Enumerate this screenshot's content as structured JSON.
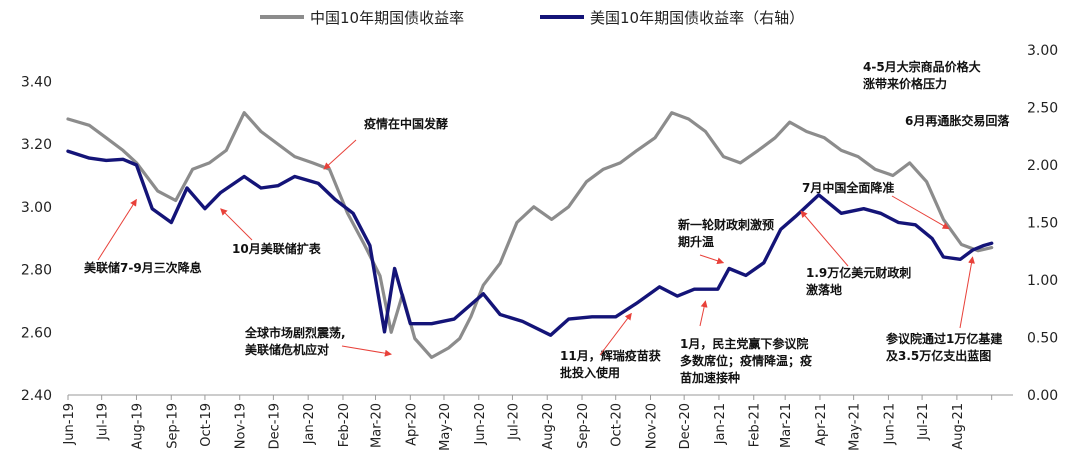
{
  "chart_data": {
    "type": "line",
    "title": "",
    "series": [
      {
        "name": "中国10年期国债收益率",
        "axis": "left",
        "color": "#8c8c8c",
        "points": [
          [
            "2019-06-01",
            3.28
          ],
          [
            "2019-06-20",
            3.26
          ],
          [
            "2019-07-05",
            3.22
          ],
          [
            "2019-07-20",
            3.18
          ],
          [
            "2019-08-01",
            3.14
          ],
          [
            "2019-08-20",
            3.05
          ],
          [
            "2019-09-05",
            3.02
          ],
          [
            "2019-09-20",
            3.12
          ],
          [
            "2019-10-05",
            3.14
          ],
          [
            "2019-10-20",
            3.18
          ],
          [
            "2019-11-05",
            3.3
          ],
          [
            "2019-11-20",
            3.24
          ],
          [
            "2019-12-05",
            3.2
          ],
          [
            "2019-12-20",
            3.16
          ],
          [
            "2020-01-05",
            3.14
          ],
          [
            "2020-01-20",
            3.12
          ],
          [
            "2020-02-05",
            2.98
          ],
          [
            "2020-02-20",
            2.88
          ],
          [
            "2020-03-05",
            2.78
          ],
          [
            "2020-03-15",
            2.6
          ],
          [
            "2020-03-25",
            2.72
          ],
          [
            "2020-04-05",
            2.58
          ],
          [
            "2020-04-20",
            2.52
          ],
          [
            "2020-05-05",
            2.55
          ],
          [
            "2020-05-15",
            2.58
          ],
          [
            "2020-05-25",
            2.65
          ],
          [
            "2020-06-05",
            2.75
          ],
          [
            "2020-06-20",
            2.82
          ],
          [
            "2020-07-05",
            2.95
          ],
          [
            "2020-07-20",
            3.0
          ],
          [
            "2020-08-05",
            2.96
          ],
          [
            "2020-08-20",
            3.0
          ],
          [
            "2020-09-05",
            3.08
          ],
          [
            "2020-09-20",
            3.12
          ],
          [
            "2020-10-05",
            3.14
          ],
          [
            "2020-10-20",
            3.18
          ],
          [
            "2020-11-05",
            3.22
          ],
          [
            "2020-11-20",
            3.3
          ],
          [
            "2020-12-05",
            3.28
          ],
          [
            "2020-12-20",
            3.24
          ],
          [
            "2021-01-05",
            3.16
          ],
          [
            "2021-01-20",
            3.14
          ],
          [
            "2021-02-05",
            3.18
          ],
          [
            "2021-02-20",
            3.22
          ],
          [
            "2021-03-05",
            3.27
          ],
          [
            "2021-03-20",
            3.24
          ],
          [
            "2021-04-05",
            3.22
          ],
          [
            "2021-04-20",
            3.18
          ],
          [
            "2021-05-05",
            3.16
          ],
          [
            "2021-05-20",
            3.12
          ],
          [
            "2021-06-05",
            3.1
          ],
          [
            "2021-06-20",
            3.14
          ],
          [
            "2021-07-05",
            3.08
          ],
          [
            "2021-07-20",
            2.96
          ],
          [
            "2021-08-05",
            2.88
          ],
          [
            "2021-08-20",
            2.86
          ],
          [
            "2021-09-01",
            2.87
          ]
        ]
      },
      {
        "name": "美国10年期国债收益率（右轴）",
        "axis": "right",
        "color": "#141478",
        "points": [
          [
            "2019-06-01",
            2.12
          ],
          [
            "2019-06-20",
            2.06
          ],
          [
            "2019-07-05",
            2.04
          ],
          [
            "2019-07-20",
            2.05
          ],
          [
            "2019-08-01",
            2.0
          ],
          [
            "2019-08-15",
            1.62
          ],
          [
            "2019-09-01",
            1.5
          ],
          [
            "2019-09-15",
            1.8
          ],
          [
            "2019-10-01",
            1.62
          ],
          [
            "2019-10-15",
            1.76
          ],
          [
            "2019-11-05",
            1.9
          ],
          [
            "2019-11-20",
            1.8
          ],
          [
            "2019-12-05",
            1.82
          ],
          [
            "2019-12-20",
            1.9
          ],
          [
            "2020-01-10",
            1.84
          ],
          [
            "2020-01-25",
            1.7
          ],
          [
            "2020-02-10",
            1.58
          ],
          [
            "2020-02-25",
            1.3
          ],
          [
            "2020-03-09",
            0.55
          ],
          [
            "2020-03-18",
            1.1
          ],
          [
            "2020-04-01",
            0.62
          ],
          [
            "2020-04-20",
            0.62
          ],
          [
            "2020-05-10",
            0.66
          ],
          [
            "2020-06-05",
            0.88
          ],
          [
            "2020-06-20",
            0.7
          ],
          [
            "2020-07-10",
            0.64
          ],
          [
            "2020-08-04",
            0.52
          ],
          [
            "2020-08-20",
            0.66
          ],
          [
            "2020-09-10",
            0.68
          ],
          [
            "2020-10-01",
            0.68
          ],
          [
            "2020-10-20",
            0.8
          ],
          [
            "2020-11-09",
            0.94
          ],
          [
            "2020-11-25",
            0.86
          ],
          [
            "2020-12-10",
            0.92
          ],
          [
            "2020-12-31",
            0.92
          ],
          [
            "2021-01-10",
            1.1
          ],
          [
            "2021-01-25",
            1.04
          ],
          [
            "2021-02-10",
            1.15
          ],
          [
            "2021-02-25",
            1.44
          ],
          [
            "2021-03-10",
            1.55
          ],
          [
            "2021-03-31",
            1.74
          ],
          [
            "2021-04-20",
            1.58
          ],
          [
            "2021-05-10",
            1.62
          ],
          [
            "2021-05-25",
            1.58
          ],
          [
            "2021-06-10",
            1.5
          ],
          [
            "2021-06-25",
            1.48
          ],
          [
            "2021-07-10",
            1.36
          ],
          [
            "2021-07-20",
            1.2
          ],
          [
            "2021-08-04",
            1.18
          ],
          [
            "2021-08-15",
            1.26
          ],
          [
            "2021-08-25",
            1.3
          ],
          [
            "2021-09-01",
            1.32
          ]
        ]
      }
    ],
    "x_range": [
      "2019-06-01",
      "2021-09-20"
    ],
    "x_ticks": [
      "Jun-19",
      "Jul-19",
      "Aug-19",
      "Sep-19",
      "Oct-19",
      "Nov-19",
      "Dec-19",
      "Jan-20",
      "Feb-20",
      "Mar-20",
      "Apr-20",
      "May-20",
      "Jun-20",
      "Jul-20",
      "Aug-20",
      "Sep-20",
      "Oct-20",
      "Nov-20",
      "Dec-20",
      "Jan-21",
      "Feb-21",
      "Mar-21",
      "Apr-21",
      "May-21",
      "Jun-21",
      "Jul-21",
      "Aug-21"
    ],
    "y_left": {
      "range": [
        2.4,
        3.5
      ],
      "ticks": [
        "2.40",
        "2.60",
        "2.80",
        "3.00",
        "3.20",
        "3.40"
      ]
    },
    "y_right": {
      "range": [
        0.0,
        3.0
      ],
      "ticks": [
        "0.00",
        "0.50",
        "1.00",
        "1.50",
        "2.00",
        "2.50",
        "3.00"
      ]
    },
    "legend_position": "top-center",
    "annotations": [
      {
        "lines": [
          "美联储7-9月三次降息"
        ],
        "date": "2019-08-01",
        "axis": "right",
        "value": 1.7
      },
      {
        "lines": [
          "10月美联储扩表"
        ],
        "date": "2019-10-15",
        "axis": "right",
        "value": 1.62
      },
      {
        "lines": [
          "疫情在中国发酵"
        ],
        "date": "2020-01-15",
        "axis": "left",
        "value": 3.12
      },
      {
        "lines": [
          "全球市场剧烈震荡,",
          "美联储危机应对"
        ],
        "date": "2020-03-15",
        "axis": "left",
        "value": 2.53
      },
      {
        "lines": [
          "11月，辉瑞疫苗获",
          "批投入使用"
        ],
        "date": "2020-10-15",
        "axis": "left",
        "value": 2.66
      },
      {
        "lines": [
          "新一轮财政刺激预",
          "期升温"
        ],
        "date": "2021-01-05",
        "axis": "right",
        "value": 1.15
      },
      {
        "lines": [
          "1月，民主党赢下参议院",
          "多数席位；疫情降温；疫",
          "苗加速接种"
        ],
        "date": "2020-12-20",
        "axis": "left",
        "value": 2.7
      },
      {
        "lines": [
          "7月中国全面降准"
        ],
        "date": "2021-07-25",
        "axis": "left",
        "value": 2.93
      },
      {
        "lines": [
          "1.9万亿美元财政刺",
          "激落地"
        ],
        "date": "2021-03-15",
        "axis": "right",
        "value": 1.6
      },
      {
        "lines": [
          "4-5月大宗商品价格大",
          "涨带来价格压力"
        ],
        "date": "",
        "axis": "",
        "value": null
      },
      {
        "lines": [
          "6月再通胀交易回落"
        ],
        "date": "",
        "axis": "",
        "value": null
      },
      {
        "lines": [
          "参议院通过1万亿基建",
          "及3.5万亿支出蓝图"
        ],
        "date": "2021-08-15",
        "axis": "right",
        "value": 1.2
      }
    ]
  }
}
